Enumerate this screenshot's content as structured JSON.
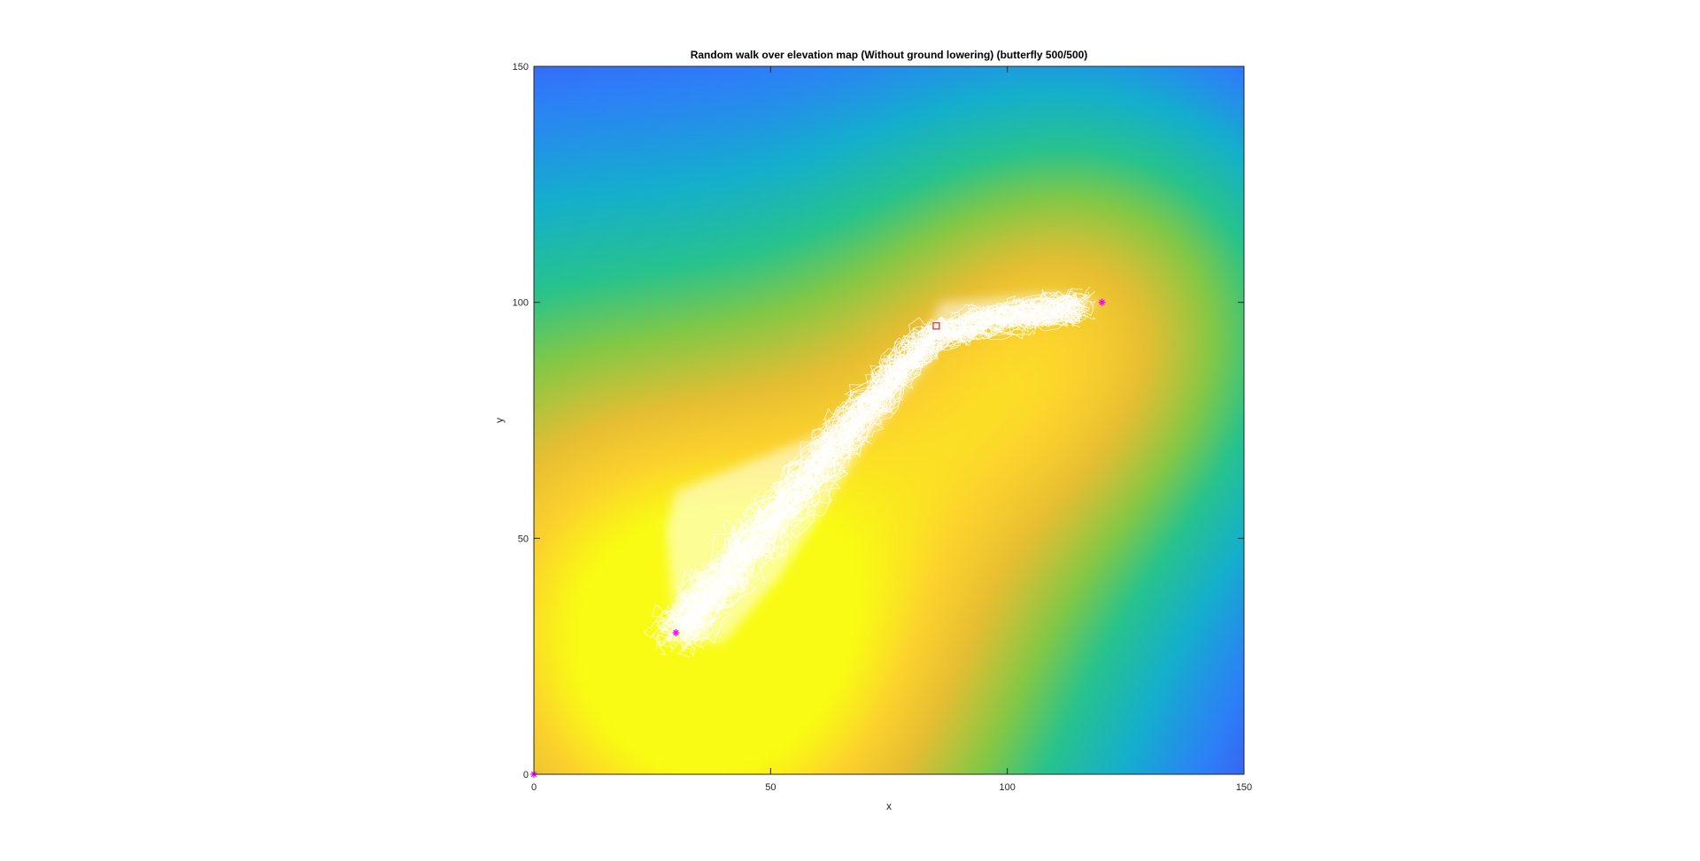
{
  "chart_data": {
    "type": "heatmap",
    "title": "Random walk over elevation map (Without ground lowering) (butterfly 500/500)",
    "xlabel": "x",
    "ylabel": "y",
    "xlim": [
      0,
      150
    ],
    "ylim": [
      0,
      150
    ],
    "xticks": [
      "0",
      "50",
      "100",
      "150"
    ],
    "yticks": [
      "0",
      "50",
      "100",
      "150"
    ],
    "grid": false,
    "legend": "none",
    "colormap": "parula",
    "elevation_peaks": [
      {
        "x": 30,
        "y": 30,
        "relative_height": 1.0
      },
      {
        "x": 120,
        "y": 100,
        "relative_height": 0.55
      }
    ],
    "walk_color": "#ffffff",
    "markers": [
      {
        "name": "start",
        "x": 0,
        "y": 0,
        "symbol": "asterisk",
        "color": "#ff00ff"
      },
      {
        "name": "peak-1",
        "x": 30,
        "y": 30,
        "symbol": "asterisk",
        "color": "#ff00ff"
      },
      {
        "name": "peak-2",
        "x": 120,
        "y": 100,
        "symbol": "asterisk",
        "color": "#ff00ff"
      },
      {
        "name": "end",
        "x": 85,
        "y": 95,
        "symbol": "square",
        "color": "#d62728"
      }
    ]
  }
}
